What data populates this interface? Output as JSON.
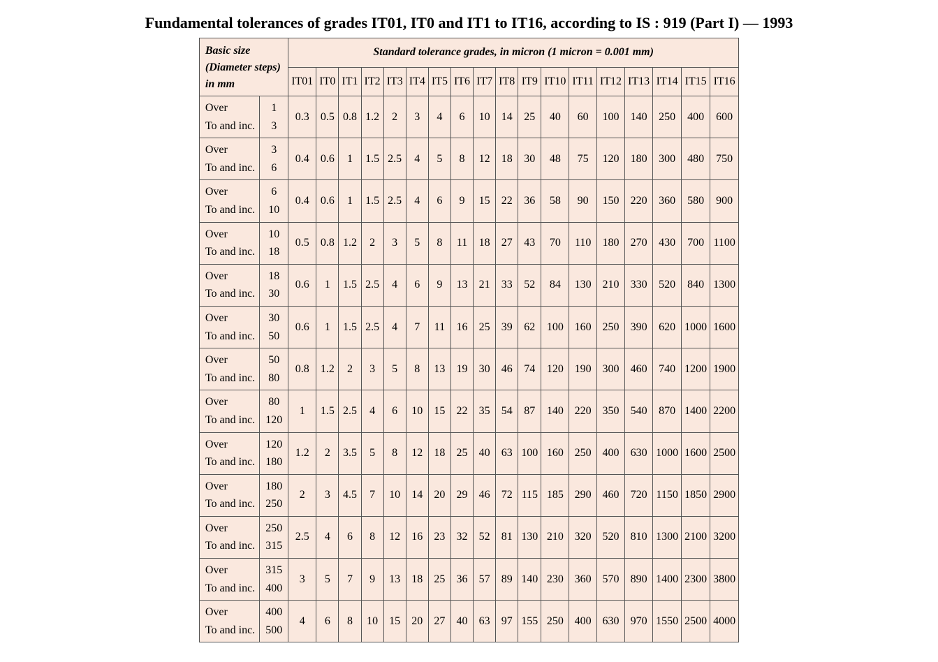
{
  "title": "Fundamental tolerances of grades IT01, IT0 and IT1 to IT16, according to IS : 919 (Part I) — 1993",
  "header": {
    "basic_size_line1": "Basic size",
    "basic_size_line2": "(Diameter steps)",
    "basic_size_line3": "in mm",
    "span_label": "Standard tolerance grades, in micron (1 micron = 0.001 mm)",
    "row_label_over": "Over",
    "row_label_to": "To and inc."
  },
  "grades": [
    "IT01",
    "IT0",
    "IT1",
    "IT2",
    "IT3",
    "IT4",
    "IT5",
    "IT6",
    "IT7",
    "IT8",
    "IT9",
    "IT10",
    "IT11",
    "IT12",
    "IT13",
    "IT14",
    "IT15",
    "IT16"
  ],
  "rows": [
    {
      "over": "1",
      "to": "3",
      "vals": [
        "0.3",
        "0.5",
        "0.8",
        "1.2",
        "2",
        "3",
        "4",
        "6",
        "10",
        "14",
        "25",
        "40",
        "60",
        "100",
        "140",
        "250",
        "400",
        "600"
      ]
    },
    {
      "over": "3",
      "to": "6",
      "vals": [
        "0.4",
        "0.6",
        "1",
        "1.5",
        "2.5",
        "4",
        "5",
        "8",
        "12",
        "18",
        "30",
        "48",
        "75",
        "120",
        "180",
        "300",
        "480",
        "750"
      ]
    },
    {
      "over": "6",
      "to": "10",
      "vals": [
        "0.4",
        "0.6",
        "1",
        "1.5",
        "2.5",
        "4",
        "6",
        "9",
        "15",
        "22",
        "36",
        "58",
        "90",
        "150",
        "220",
        "360",
        "580",
        "900"
      ]
    },
    {
      "over": "10",
      "to": "18",
      "vals": [
        "0.5",
        "0.8",
        "1.2",
        "2",
        "3",
        "5",
        "8",
        "11",
        "18",
        "27",
        "43",
        "70",
        "110",
        "180",
        "270",
        "430",
        "700",
        "1100"
      ]
    },
    {
      "over": "18",
      "to": "30",
      "vals": [
        "0.6",
        "1",
        "1.5",
        "2.5",
        "4",
        "6",
        "9",
        "13",
        "21",
        "33",
        "52",
        "84",
        "130",
        "210",
        "330",
        "520",
        "840",
        "1300"
      ]
    },
    {
      "over": "30",
      "to": "50",
      "vals": [
        "0.6",
        "1",
        "1.5",
        "2.5",
        "4",
        "7",
        "11",
        "16",
        "25",
        "39",
        "62",
        "100",
        "160",
        "250",
        "390",
        "620",
        "1000",
        "1600"
      ]
    },
    {
      "over": "50",
      "to": "80",
      "vals": [
        "0.8",
        "1.2",
        "2",
        "3",
        "5",
        "8",
        "13",
        "19",
        "30",
        "46",
        "74",
        "120",
        "190",
        "300",
        "460",
        "740",
        "1200",
        "1900"
      ]
    },
    {
      "over": "80",
      "to": "120",
      "vals": [
        "1",
        "1.5",
        "2.5",
        "4",
        "6",
        "10",
        "15",
        "22",
        "35",
        "54",
        "87",
        "140",
        "220",
        "350",
        "540",
        "870",
        "1400",
        "2200"
      ]
    },
    {
      "over": "120",
      "to": "180",
      "vals": [
        "1.2",
        "2",
        "3.5",
        "5",
        "8",
        "12",
        "18",
        "25",
        "40",
        "63",
        "100",
        "160",
        "250",
        "400",
        "630",
        "1000",
        "1600",
        "2500"
      ]
    },
    {
      "over": "180",
      "to": "250",
      "vals": [
        "2",
        "3",
        "4.5",
        "7",
        "10",
        "14",
        "20",
        "29",
        "46",
        "72",
        "115",
        "185",
        "290",
        "460",
        "720",
        "1150",
        "1850",
        "2900"
      ]
    },
    {
      "over": "250",
      "to": "315",
      "vals": [
        "2.5",
        "4",
        "6",
        "8",
        "12",
        "16",
        "23",
        "32",
        "52",
        "81",
        "130",
        "210",
        "320",
        "520",
        "810",
        "1300",
        "2100",
        "3200"
      ]
    },
    {
      "over": "315",
      "to": "400",
      "vals": [
        "3",
        "5",
        "7",
        "9",
        "13",
        "18",
        "25",
        "36",
        "57",
        "89",
        "140",
        "230",
        "360",
        "570",
        "890",
        "1400",
        "2300",
        "3800"
      ]
    },
    {
      "over": "400",
      "to": "500",
      "vals": [
        "4",
        "6",
        "8",
        "10",
        "15",
        "20",
        "27",
        "40",
        "63",
        "97",
        "155",
        "250",
        "400",
        "630",
        "970",
        "1550",
        "2500",
        "4000"
      ]
    }
  ],
  "style": {
    "bg_color": "#fae8de",
    "border_color": "#555555",
    "font_family": "Times New Roman",
    "title_fontsize": 22,
    "cell_fontsize": 16
  }
}
